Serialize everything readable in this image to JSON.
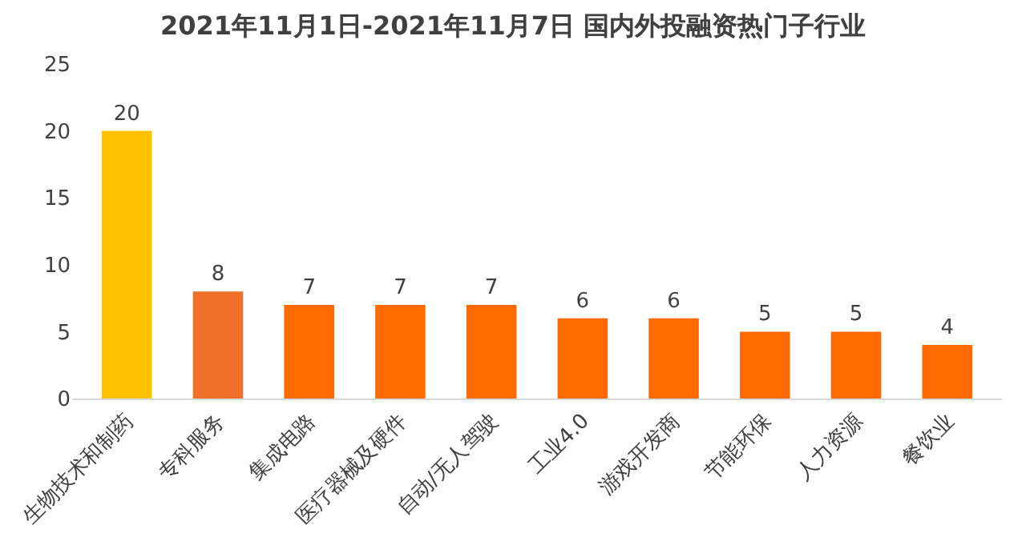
{
  "chart_data": {
    "type": "bar",
    "title": "2021年11月1日-2021年11月7日 国内外投融资热门子行业",
    "categories": [
      "生物技术和制药",
      "专科服务",
      "集成电路",
      "医疗器械及硬件",
      "自动/无人驾驶",
      "工业4.0",
      "游戏开发商",
      "节能环保",
      "人力资源",
      "餐饮业"
    ],
    "values": [
      20,
      8,
      7,
      7,
      7,
      6,
      6,
      5,
      5,
      4
    ],
    "colors": [
      "#ffc000",
      "#f0702a",
      "#ff6a00",
      "#ff6a00",
      "#ff6a00",
      "#ff6a00",
      "#ff6a00",
      "#ff6a00",
      "#ff6a00",
      "#ff6a00"
    ],
    "ylim": [
      0,
      25
    ],
    "yticks": [
      0,
      5,
      10,
      15,
      20,
      25
    ],
    "grid": false,
    "data_labels": true
  }
}
